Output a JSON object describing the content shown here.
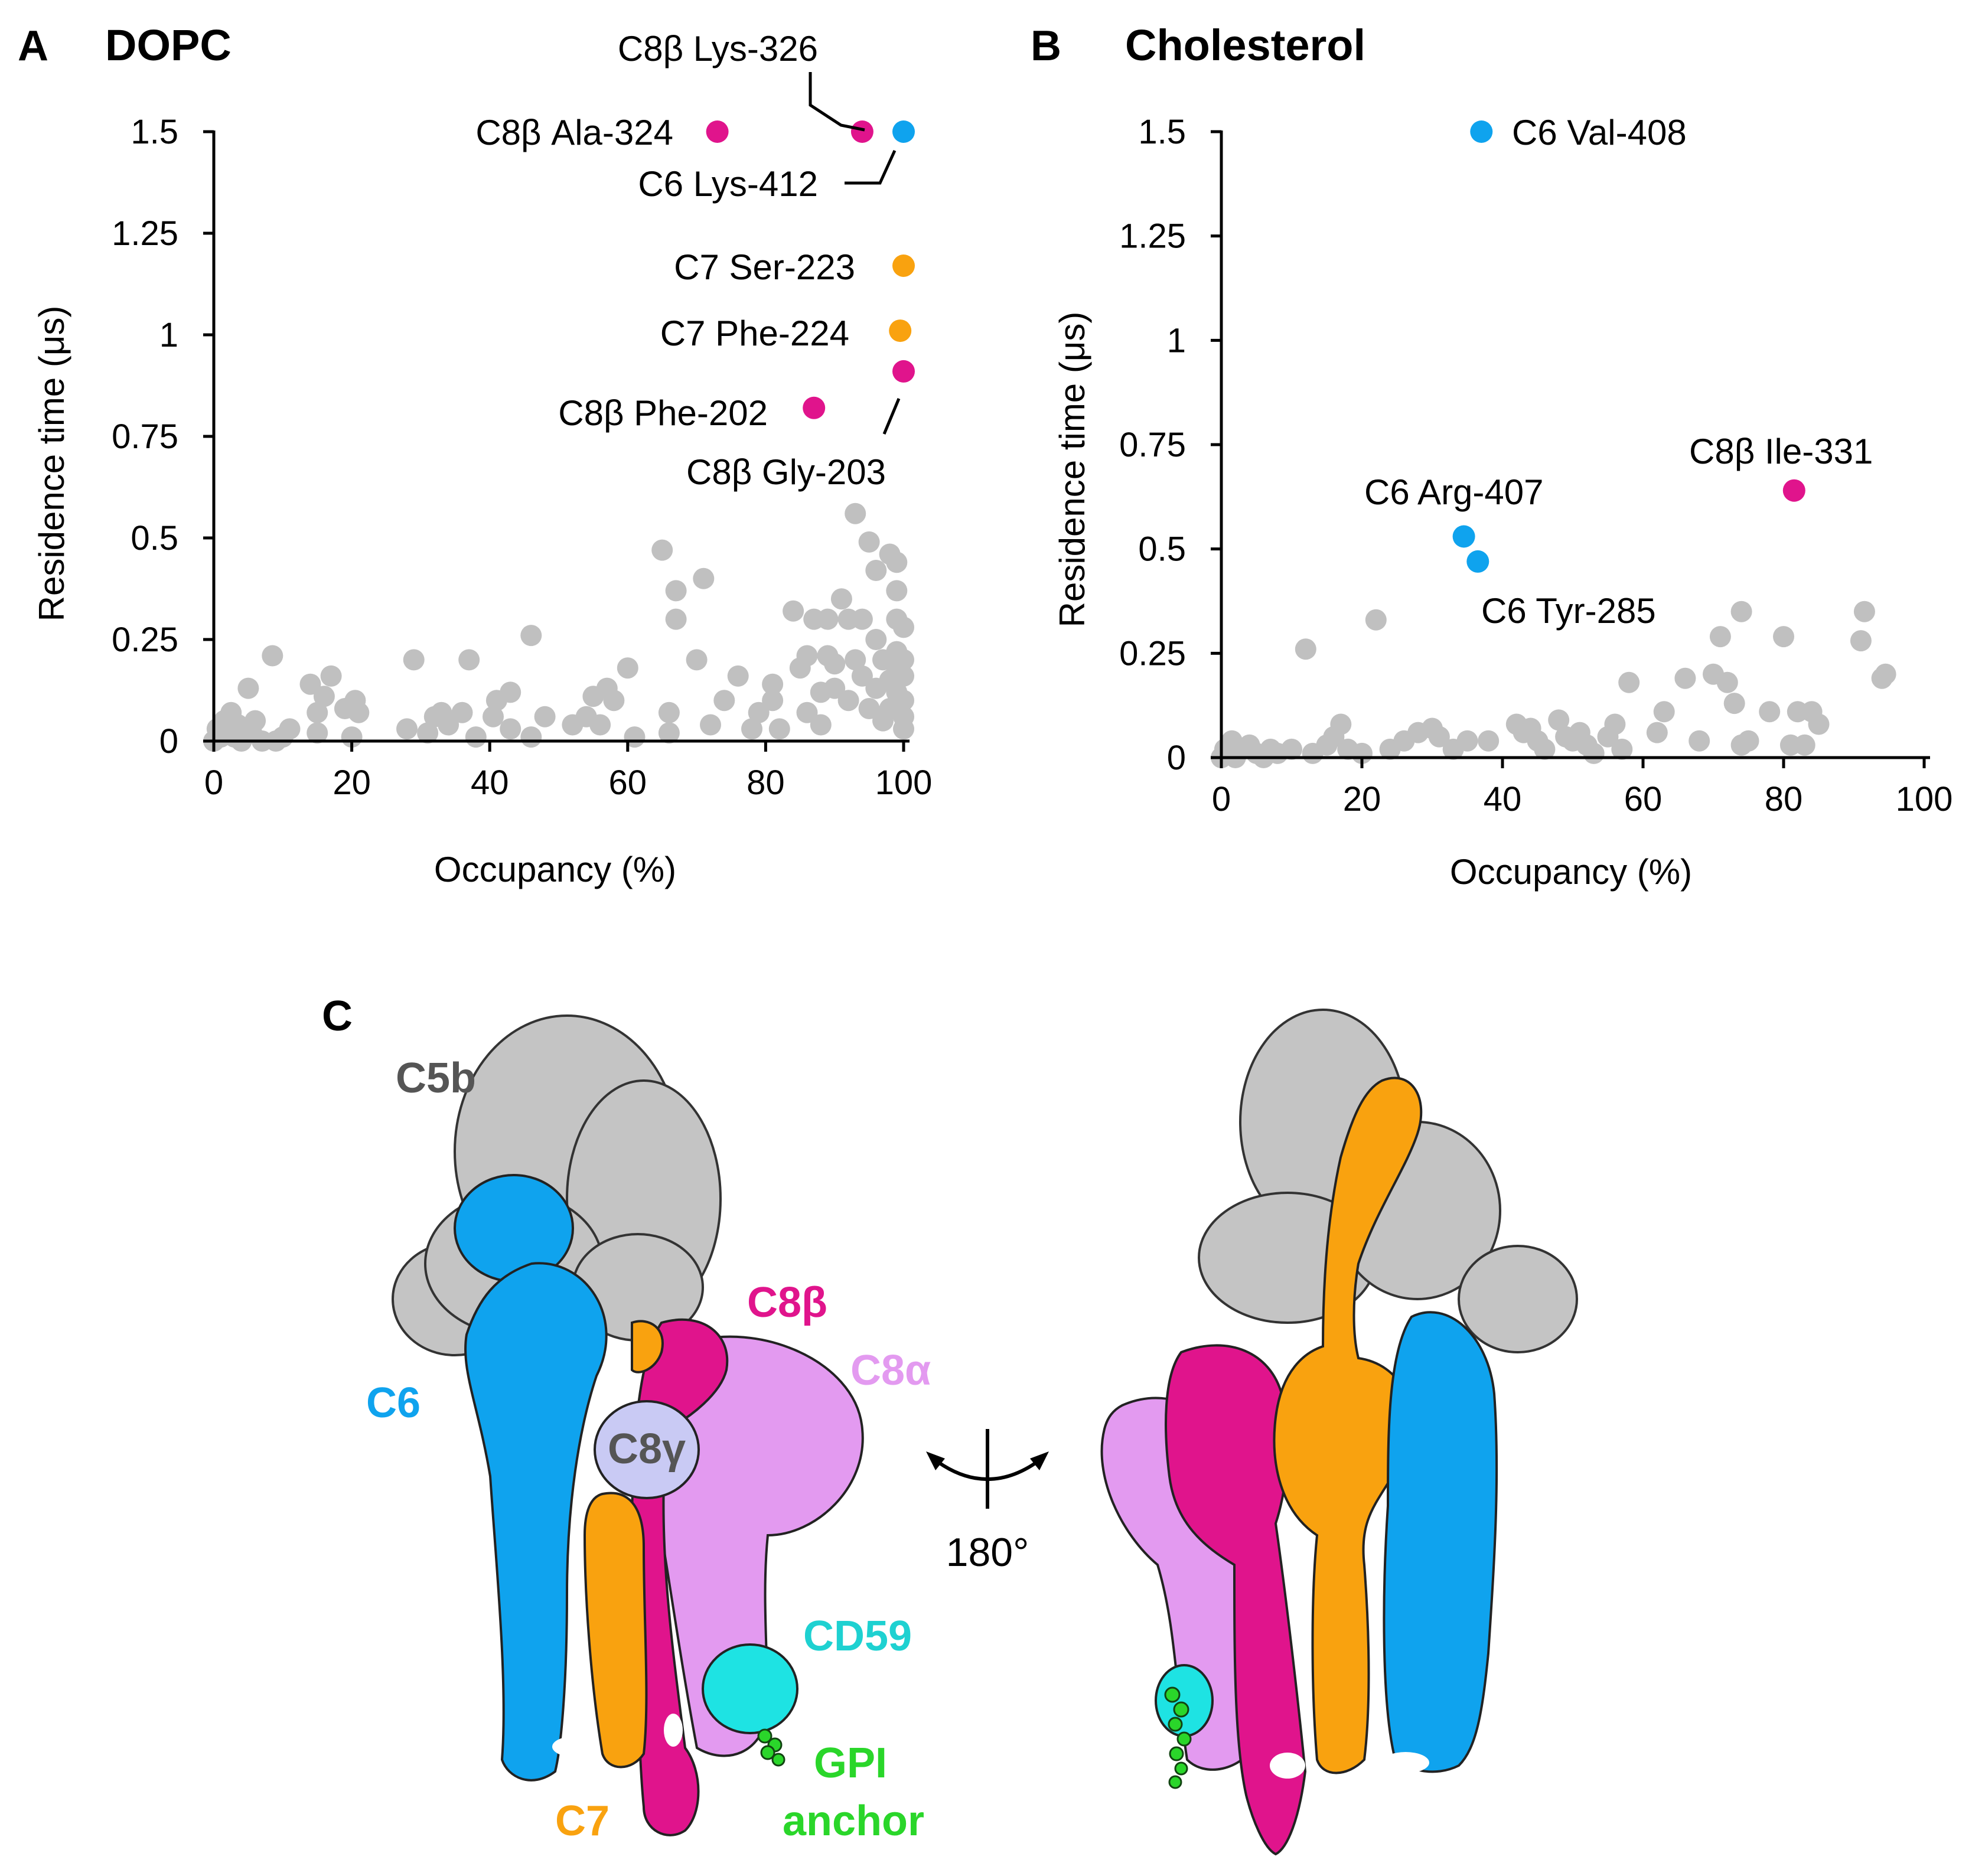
{
  "colors": {
    "grey": "#c0c0c0",
    "c6": "#0fa3ee",
    "c7": "#f9a20f",
    "c8b": "#e0148c",
    "c8a": "#e39af0",
    "c8g": "#c9caf4",
    "c5b": "#c4c4c4",
    "cd59": "#1ee3e3",
    "gpi": "#2ad62a"
  },
  "chart_data": [
    {
      "panel": "A",
      "type": "scatter",
      "title": "DOPC",
      "xlabel": "Occupancy (%)",
      "ylabel": "Residence time (μs)",
      "xlim": [
        0,
        100
      ],
      "ylim": [
        0,
        1.5
      ],
      "xticks": [
        "0",
        "20",
        "40",
        "60",
        "80",
        "100"
      ],
      "yticks": [
        "0",
        "0.25",
        "0.5",
        "0.75",
        "1",
        "1.25",
        "1.5"
      ],
      "highlighted": [
        {
          "label": "C8β Ala-324",
          "x": 73,
          "y": 1.5,
          "group": "C8b"
        },
        {
          "label": "C8β Lys-326",
          "x": 94,
          "y": 1.5,
          "group": "C8b"
        },
        {
          "label": "C6 Lys-412",
          "x": 100,
          "y": 1.5,
          "group": "C6"
        },
        {
          "label": "C7 Ser-223",
          "x": 100,
          "y": 1.17,
          "group": "C7"
        },
        {
          "label": "C7 Phe-224",
          "x": 99.5,
          "y": 1.01,
          "group": "C7"
        },
        {
          "label": "C8β Gly-203",
          "x": 100,
          "y": 0.91,
          "group": "C8b"
        },
        {
          "label": "C8β Phe-202",
          "x": 87,
          "y": 0.82,
          "group": "C8b"
        }
      ],
      "background_points": [
        [
          0,
          0
        ],
        [
          0.5,
          0.03
        ],
        [
          1,
          0.01
        ],
        [
          1.5,
          0.05
        ],
        [
          2,
          0.02
        ],
        [
          2.5,
          0.07
        ],
        [
          3,
          0.01
        ],
        [
          3.5,
          0.04
        ],
        [
          4,
          0.0
        ],
        [
          5,
          0.13
        ],
        [
          5.5,
          0.02
        ],
        [
          6,
          0.05
        ],
        [
          7,
          0.0
        ],
        [
          8.5,
          0.21
        ],
        [
          9,
          0.0
        ],
        [
          10,
          0.01
        ],
        [
          11,
          0.03
        ],
        [
          14,
          0.14
        ],
        [
          15,
          0.02
        ],
        [
          15,
          0.07
        ],
        [
          16,
          0.11
        ],
        [
          17,
          0.16
        ],
        [
          19,
          0.08
        ],
        [
          20,
          0.01
        ],
        [
          20.5,
          0.1
        ],
        [
          21,
          0.07
        ],
        [
          28,
          0.03
        ],
        [
          29,
          0.2
        ],
        [
          31,
          0.02
        ],
        [
          32,
          0.06
        ],
        [
          33,
          0.07
        ],
        [
          34,
          0.04
        ],
        [
          36,
          0.07
        ],
        [
          37,
          0.2
        ],
        [
          38,
          0.01
        ],
        [
          40.5,
          0.06
        ],
        [
          41,
          0.1
        ],
        [
          43,
          0.03
        ],
        [
          43,
          0.12
        ],
        [
          46,
          0.26
        ],
        [
          46,
          0.01
        ],
        [
          48,
          0.06
        ],
        [
          52,
          0.04
        ],
        [
          54,
          0.06
        ],
        [
          55,
          0.11
        ],
        [
          56,
          0.04
        ],
        [
          57,
          0.13
        ],
        [
          58,
          0.1
        ],
        [
          60,
          0.18
        ],
        [
          61,
          0.01
        ],
        [
          65,
          0.47
        ],
        [
          66,
          0.07
        ],
        [
          66,
          0.02
        ],
        [
          67,
          0.3
        ],
        [
          67,
          0.37
        ],
        [
          70,
          0.2
        ],
        [
          71,
          0.4
        ],
        [
          72,
          0.04
        ],
        [
          74,
          0.1
        ],
        [
          76,
          0.16
        ],
        [
          78,
          0.03
        ],
        [
          79,
          0.07
        ],
        [
          81,
          0.14
        ],
        [
          81,
          0.1
        ],
        [
          82,
          0.03
        ],
        [
          84,
          0.32
        ],
        [
          85,
          0.18
        ],
        [
          86,
          0.21
        ],
        [
          86,
          0.07
        ],
        [
          87,
          0.3
        ],
        [
          88,
          0.12
        ],
        [
          88,
          0.04
        ],
        [
          89,
          0.21
        ],
        [
          89,
          0.3
        ],
        [
          90,
          0.13
        ],
        [
          90,
          0.19
        ],
        [
          91,
          0.35
        ],
        [
          92,
          0.1
        ],
        [
          92,
          0.3
        ],
        [
          93,
          0.56
        ],
        [
          93,
          0.2
        ],
        [
          94,
          0.3
        ],
        [
          94,
          0.16
        ],
        [
          95,
          0.08
        ],
        [
          95,
          0.49
        ],
        [
          96,
          0.42
        ],
        [
          96,
          0.25
        ],
        [
          96,
          0.13
        ],
        [
          97,
          0.2
        ],
        [
          97,
          0.05
        ],
        [
          98,
          0.46
        ],
        [
          98,
          0.15
        ],
        [
          98,
          0.08
        ],
        [
          99,
          0.44
        ],
        [
          99,
          0.37
        ],
        [
          99,
          0.3
        ],
        [
          99,
          0.22
        ],
        [
          99,
          0.18
        ],
        [
          99,
          0.12
        ],
        [
          100,
          0.28
        ],
        [
          100,
          0.2
        ],
        [
          100,
          0.16
        ],
        [
          100,
          0.1
        ],
        [
          100,
          0.06
        ],
        [
          100,
          0.03
        ]
      ]
    },
    {
      "panel": "B",
      "type": "scatter",
      "title": "Cholesterol",
      "xlabel": "Occupancy (%)",
      "ylabel": "Residence time (μs)",
      "xlim": [
        0,
        100
      ],
      "ylim": [
        0,
        1.5
      ],
      "xticks": [
        "0",
        "20",
        "40",
        "60",
        "80",
        "100"
      ],
      "yticks": [
        "0",
        "0.25",
        "0.5",
        "0.75",
        "1",
        "1.25",
        "1.5"
      ],
      "highlighted": [
        {
          "label": "C6 Val-408",
          "x": 37,
          "y": 1.5,
          "group": "C6"
        },
        {
          "label": "C6 Arg-407",
          "x": 34.5,
          "y": 0.53,
          "group": "C6"
        },
        {
          "label": "C6 Tyr-285",
          "x": 36.5,
          "y": 0.47,
          "group": "C6"
        },
        {
          "label": "C8β Ile-331",
          "x": 81.5,
          "y": 0.64,
          "group": "C8b"
        }
      ],
      "background_points": [
        [
          0,
          0
        ],
        [
          0.5,
          0.02
        ],
        [
          1,
          0.01
        ],
        [
          1.5,
          0.04
        ],
        [
          2,
          0.0
        ],
        [
          3,
          0.02
        ],
        [
          4,
          0.03
        ],
        [
          5,
          0.01
        ],
        [
          6,
          0.0
        ],
        [
          7,
          0.02
        ],
        [
          8,
          0.01
        ],
        [
          10,
          0.02
        ],
        [
          12,
          0.26
        ],
        [
          13,
          0.01
        ],
        [
          15,
          0.03
        ],
        [
          16,
          0.05
        ],
        [
          17,
          0.08
        ],
        [
          18,
          0.02
        ],
        [
          20,
          0.01
        ],
        [
          22,
          0.33
        ],
        [
          24,
          0.02
        ],
        [
          26,
          0.04
        ],
        [
          28,
          0.06
        ],
        [
          30,
          0.07
        ],
        [
          31,
          0.05
        ],
        [
          33,
          0.02
        ],
        [
          35,
          0.04
        ],
        [
          38,
          0.04
        ],
        [
          42,
          0.08
        ],
        [
          43,
          0.06
        ],
        [
          44,
          0.07
        ],
        [
          45,
          0.04
        ],
        [
          46,
          0.02
        ],
        [
          48,
          0.09
        ],
        [
          49,
          0.05
        ],
        [
          50,
          0.04
        ],
        [
          51,
          0.06
        ],
        [
          52,
          0.03
        ],
        [
          53,
          0.01
        ],
        [
          55,
          0.05
        ],
        [
          56,
          0.08
        ],
        [
          57,
          0.02
        ],
        [
          58,
          0.18
        ],
        [
          62,
          0.06
        ],
        [
          63,
          0.11
        ],
        [
          66,
          0.19
        ],
        [
          68,
          0.04
        ],
        [
          70,
          0.2
        ],
        [
          71,
          0.29
        ],
        [
          72,
          0.18
        ],
        [
          73,
          0.13
        ],
        [
          74,
          0.35
        ],
        [
          74,
          0.03
        ],
        [
          75,
          0.04
        ],
        [
          78,
          0.11
        ],
        [
          80,
          0.29
        ],
        [
          81,
          0.03
        ],
        [
          82,
          0.11
        ],
        [
          83,
          0.03
        ],
        [
          84,
          0.11
        ],
        [
          85,
          0.08
        ],
        [
          91,
          0.28
        ],
        [
          91.5,
          0.35
        ],
        [
          94,
          0.19
        ],
        [
          94.5,
          0.2
        ]
      ]
    }
  ],
  "panelC": {
    "letter": "C",
    "rotation_label": "180°",
    "labels": {
      "c5b": "C5b",
      "c6": "C6",
      "c8b": "C8β",
      "c8a": "C8α",
      "c8g": "C8γ",
      "cd59": "CD59",
      "gpi_line1": "GPI",
      "gpi_line2": "anchor",
      "c7": "C7"
    }
  }
}
